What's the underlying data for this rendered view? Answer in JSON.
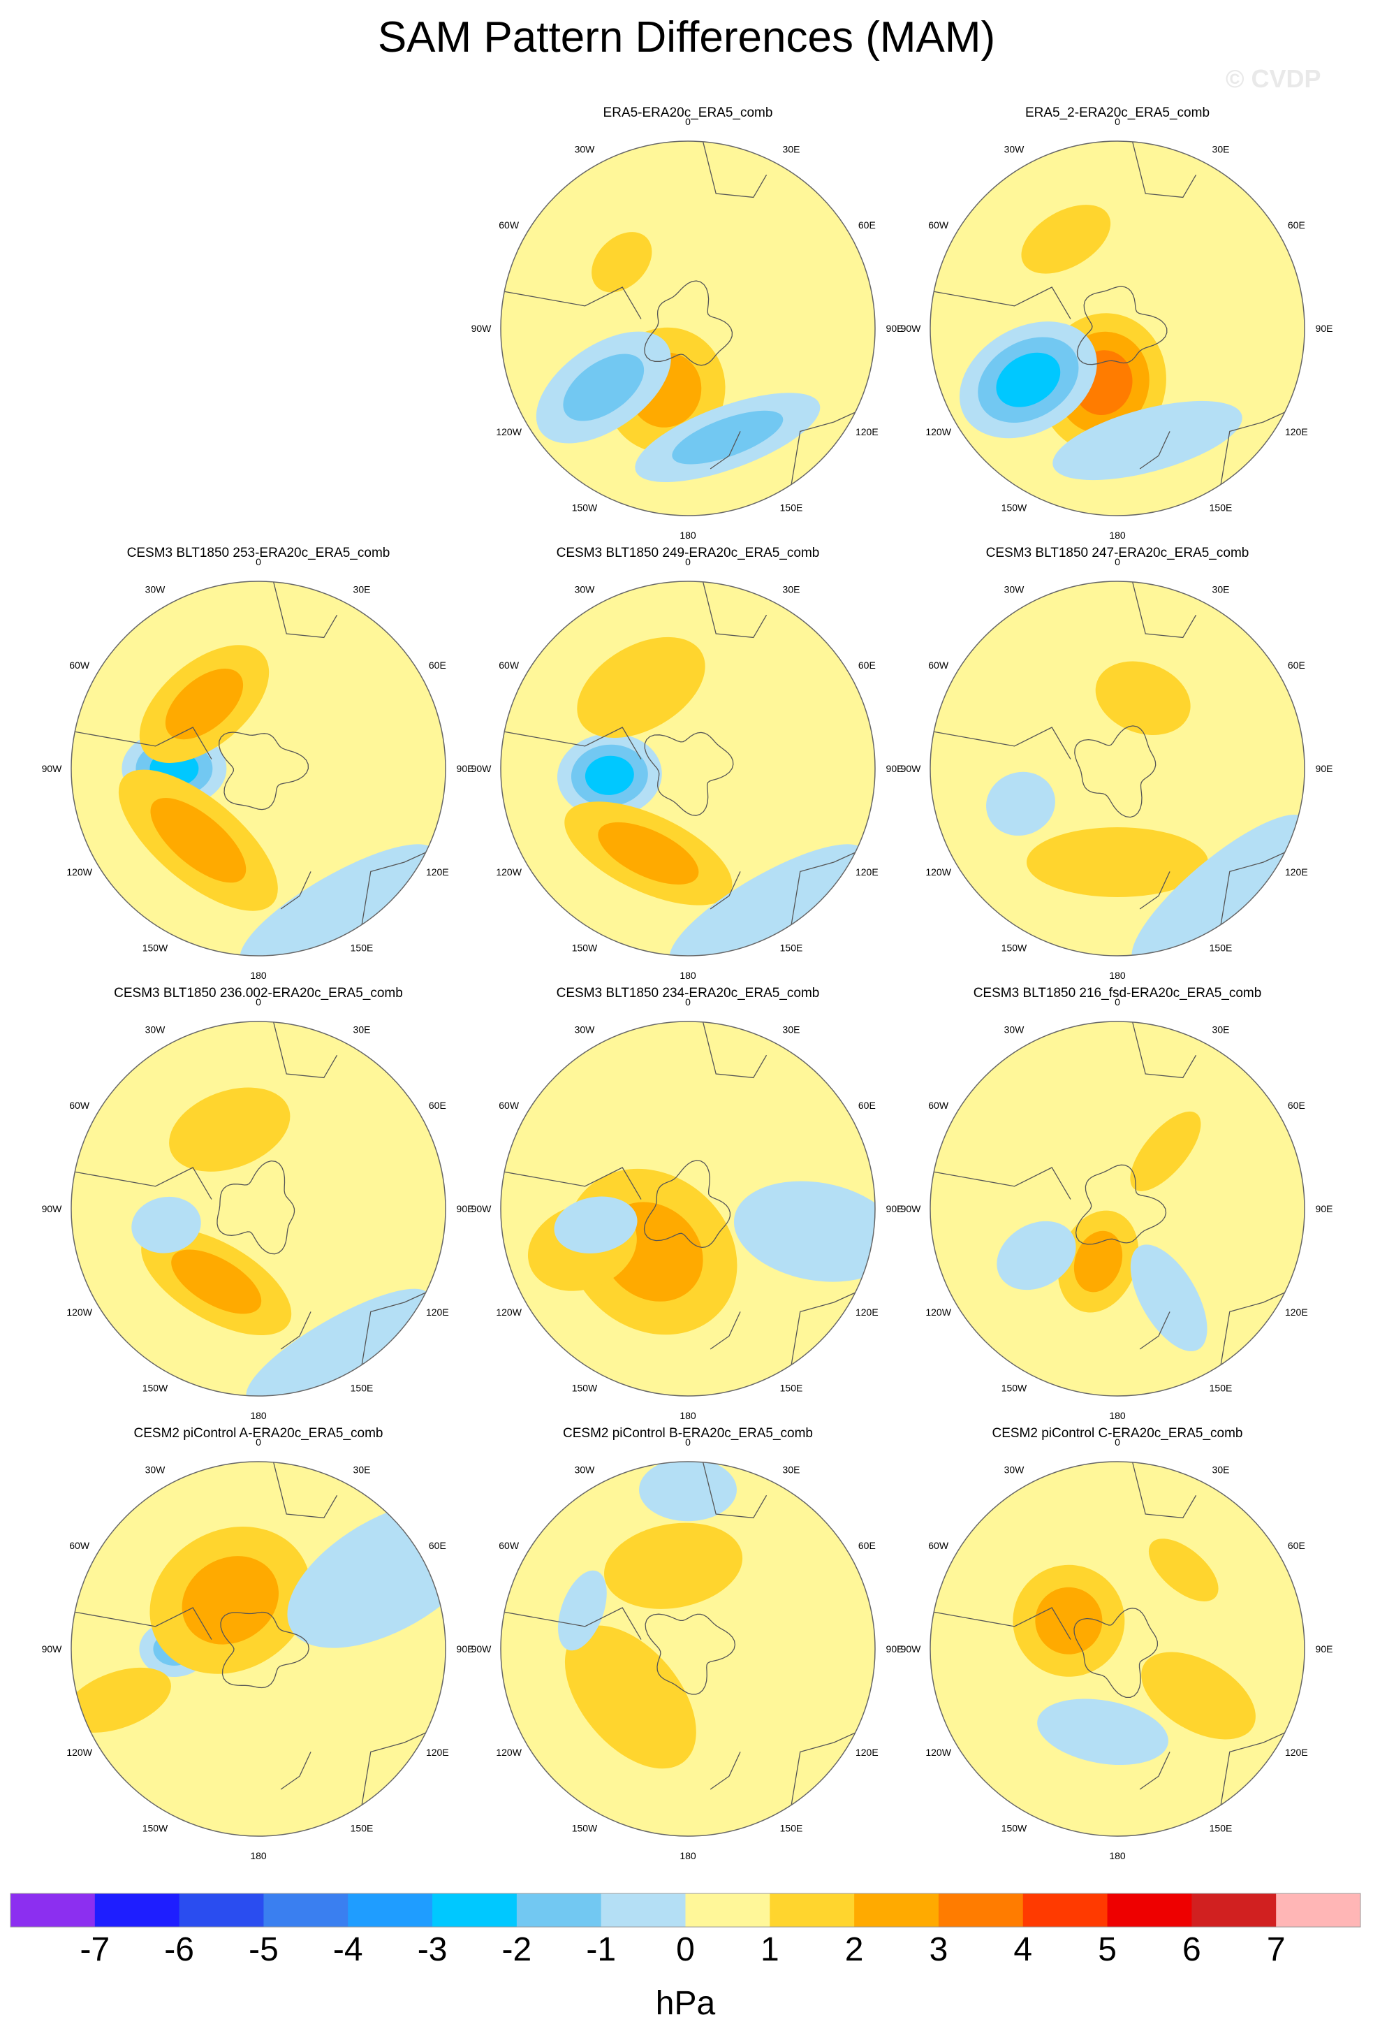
{
  "figure": {
    "title": "SAM Pattern Differences (MAM)",
    "watermark": "© CVDP"
  },
  "chart_data": {
    "type": "heatmap",
    "projection": "south-polar stereographic",
    "variable": "sea level pressure difference",
    "units": "hPa",
    "colorbar": {
      "levels": [
        "-7",
        "-6",
        "-5",
        "-4",
        "-3",
        "-2",
        "-1",
        "0",
        "1",
        "2",
        "3",
        "4",
        "5",
        "6",
        "7"
      ],
      "colors": [
        "#8c2ff0",
        "#1e1eff",
        "#2a4df0",
        "#3a7ff0",
        "#1f9dff",
        "#00c8ff",
        "#72c8f2",
        "#b4dff5",
        "#fff799",
        "#ffd52e",
        "#ffaa00",
        "#ff7c00",
        "#ff3a00",
        "#ee0000",
        "#d12020",
        "#ffb6b6"
      ],
      "label": "hPa"
    },
    "longitude_labels": [
      "0",
      "30E",
      "60E",
      "90E",
      "120E",
      "150E",
      "180",
      "150W",
      "120W",
      "90W",
      "60W",
      "30W"
    ],
    "panels": [
      {
        "title": "ERA5-ERA20c_ERA5_comb",
        "row": 0,
        "col": 1,
        "min": -2,
        "max": 3
      },
      {
        "title": "ERA5_2-ERA20c_ERA5_comb",
        "row": 0,
        "col": 2,
        "min": -3,
        "max": 4
      },
      {
        "title": "CESM3 BLT1850 253-ERA20c_ERA5_comb",
        "row": 1,
        "col": 0,
        "min": -3,
        "max": 3
      },
      {
        "title": "CESM3 BLT1850 249-ERA20c_ERA5_comb",
        "row": 1,
        "col": 1,
        "min": -3,
        "max": 3
      },
      {
        "title": "CESM3 BLT1850 247-ERA20c_ERA5_comb",
        "row": 1,
        "col": 2,
        "min": -1,
        "max": 2
      },
      {
        "title": "CESM3 BLT1850 236.002-ERA20c_ERA5_comb",
        "row": 2,
        "col": 0,
        "min": -1,
        "max": 3
      },
      {
        "title": "CESM3 BLT1850 234-ERA20c_ERA5_comb",
        "row": 2,
        "col": 1,
        "min": -1,
        "max": 3
      },
      {
        "title": "CESM3 BLT1850 216_fsd-ERA20c_ERA5_comb",
        "row": 2,
        "col": 2,
        "min": -1,
        "max": 3
      },
      {
        "title": "CESM2 piControl A-ERA20c_ERA5_comb",
        "row": 3,
        "col": 0,
        "min": -2,
        "max": 3
      },
      {
        "title": "CESM2 piControl B-ERA20c_ERA5_comb",
        "row": 3,
        "col": 1,
        "min": -1,
        "max": 2
      },
      {
        "title": "CESM2 piControl C-ERA20c_ERA5_comb",
        "row": 3,
        "col": 2,
        "min": -1,
        "max": 3
      }
    ]
  }
}
